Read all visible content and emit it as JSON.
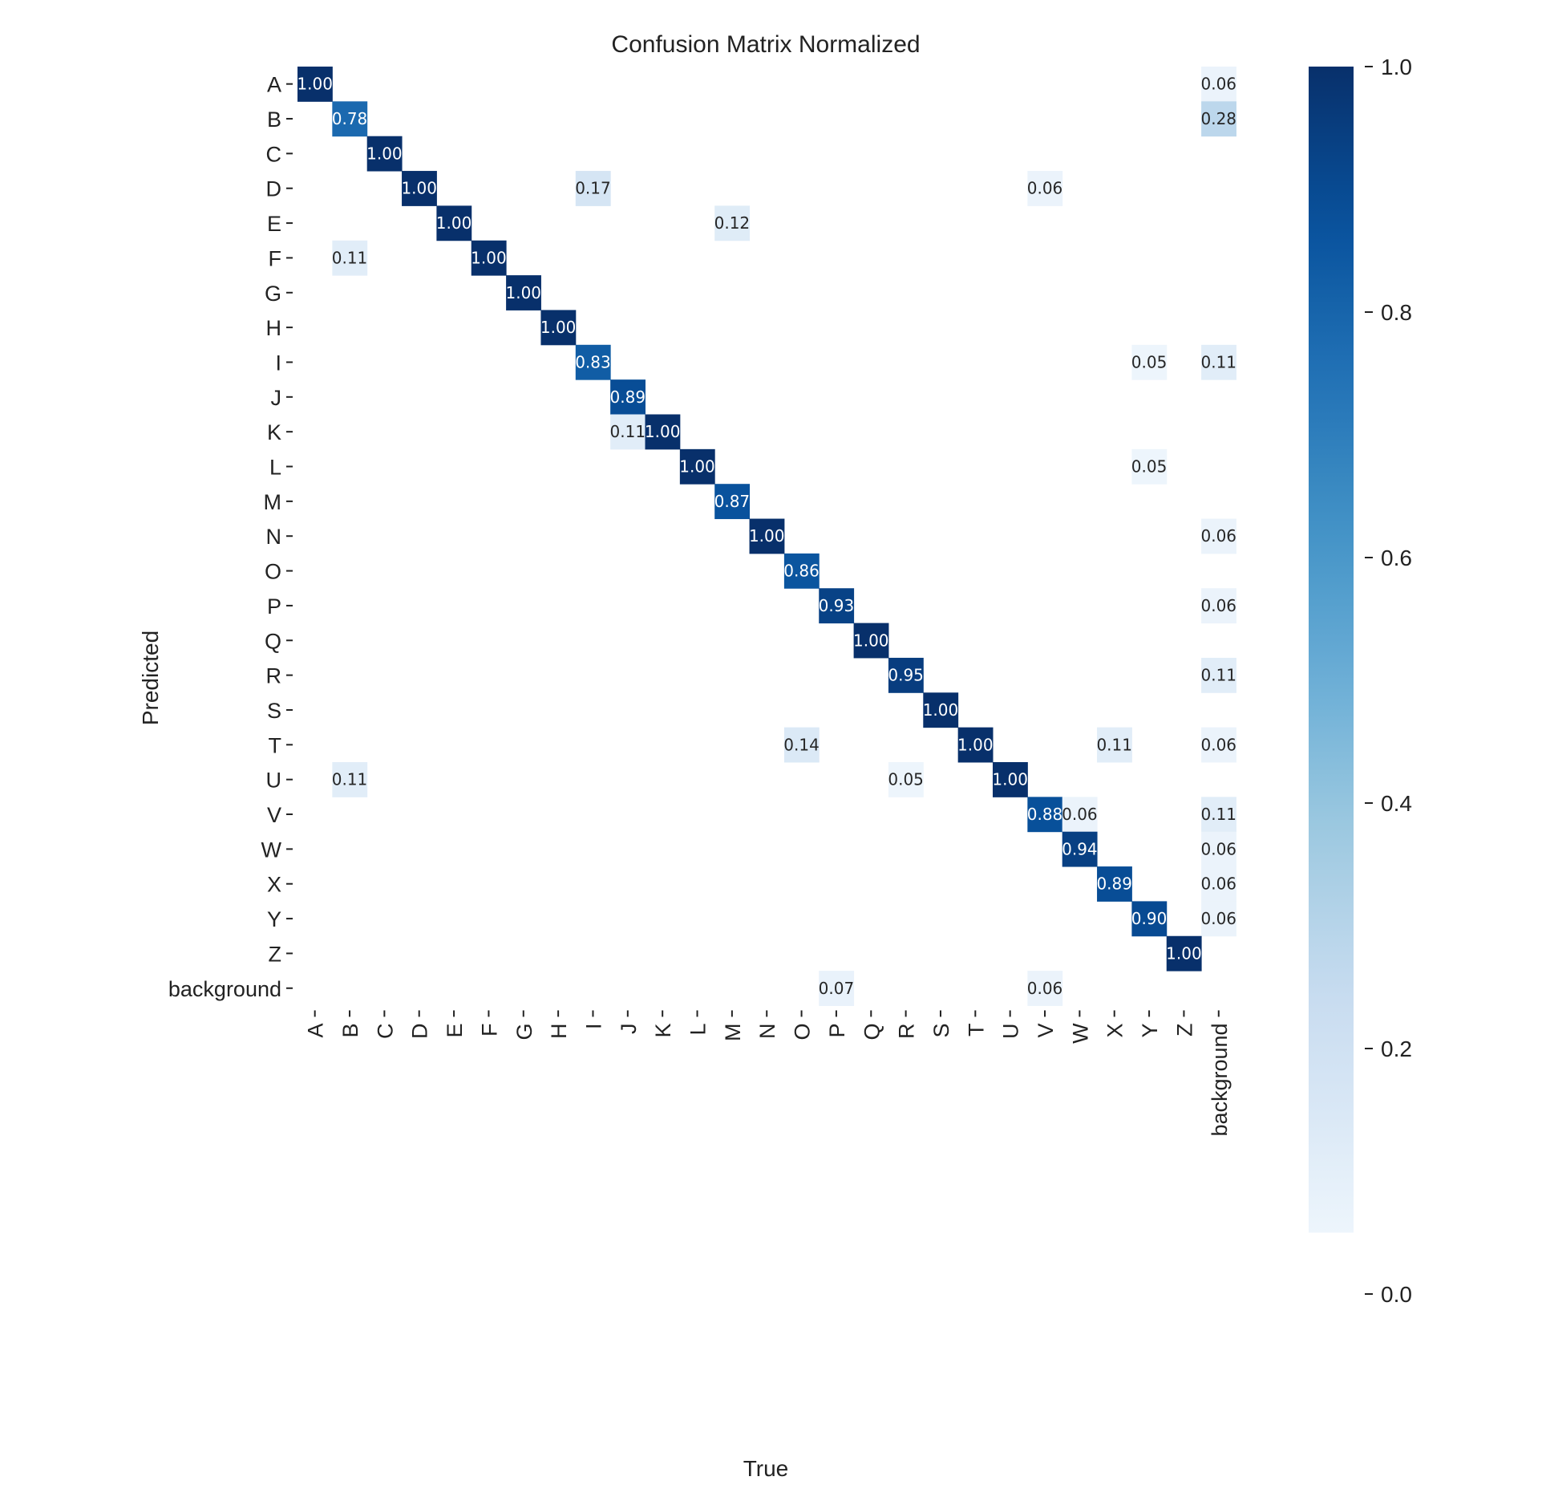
{
  "chart_data": {
    "type": "heatmap",
    "title": "Confusion Matrix Normalized",
    "xlabel": "True",
    "ylabel": "Predicted",
    "x_categories": [
      "A",
      "B",
      "C",
      "D",
      "E",
      "F",
      "G",
      "H",
      "I",
      "J",
      "K",
      "L",
      "M",
      "N",
      "O",
      "P",
      "Q",
      "R",
      "S",
      "T",
      "U",
      "V",
      "W",
      "X",
      "Y",
      "Z",
      "background"
    ],
    "y_categories": [
      "A",
      "B",
      "C",
      "D",
      "E",
      "F",
      "G",
      "H",
      "I",
      "J",
      "K",
      "L",
      "M",
      "N",
      "O",
      "P",
      "Q",
      "R",
      "S",
      "T",
      "U",
      "V",
      "W",
      "X",
      "Y",
      "Z",
      "background"
    ],
    "cells": [
      {
        "row": "A",
        "col": "A",
        "value": 1.0
      },
      {
        "row": "A",
        "col": "background",
        "value": 0.06
      },
      {
        "row": "B",
        "col": "B",
        "value": 0.78
      },
      {
        "row": "B",
        "col": "background",
        "value": 0.28
      },
      {
        "row": "C",
        "col": "C",
        "value": 1.0
      },
      {
        "row": "D",
        "col": "D",
        "value": 1.0
      },
      {
        "row": "D",
        "col": "I",
        "value": 0.17
      },
      {
        "row": "D",
        "col": "V",
        "value": 0.06
      },
      {
        "row": "E",
        "col": "E",
        "value": 1.0
      },
      {
        "row": "E",
        "col": "M",
        "value": 0.12
      },
      {
        "row": "F",
        "col": "B",
        "value": 0.11
      },
      {
        "row": "F",
        "col": "F",
        "value": 1.0
      },
      {
        "row": "G",
        "col": "G",
        "value": 1.0
      },
      {
        "row": "H",
        "col": "H",
        "value": 1.0
      },
      {
        "row": "I",
        "col": "I",
        "value": 0.83
      },
      {
        "row": "I",
        "col": "Y",
        "value": 0.05
      },
      {
        "row": "I",
        "col": "background",
        "value": 0.11
      },
      {
        "row": "J",
        "col": "J",
        "value": 0.89
      },
      {
        "row": "K",
        "col": "J",
        "value": 0.11
      },
      {
        "row": "K",
        "col": "K",
        "value": 1.0
      },
      {
        "row": "L",
        "col": "L",
        "value": 1.0
      },
      {
        "row": "L",
        "col": "Y",
        "value": 0.05
      },
      {
        "row": "M",
        "col": "M",
        "value": 0.87
      },
      {
        "row": "N",
        "col": "N",
        "value": 1.0
      },
      {
        "row": "N",
        "col": "background",
        "value": 0.06
      },
      {
        "row": "O",
        "col": "O",
        "value": 0.86
      },
      {
        "row": "P",
        "col": "P",
        "value": 0.93
      },
      {
        "row": "P",
        "col": "background",
        "value": 0.06
      },
      {
        "row": "Q",
        "col": "Q",
        "value": 1.0
      },
      {
        "row": "R",
        "col": "R",
        "value": 0.95
      },
      {
        "row": "R",
        "col": "background",
        "value": 0.11
      },
      {
        "row": "S",
        "col": "S",
        "value": 1.0
      },
      {
        "row": "T",
        "col": "O",
        "value": 0.14
      },
      {
        "row": "T",
        "col": "T",
        "value": 1.0
      },
      {
        "row": "T",
        "col": "X",
        "value": 0.11
      },
      {
        "row": "T",
        "col": "background",
        "value": 0.06
      },
      {
        "row": "U",
        "col": "B",
        "value": 0.11
      },
      {
        "row": "U",
        "col": "R",
        "value": 0.05
      },
      {
        "row": "U",
        "col": "U",
        "value": 1.0
      },
      {
        "row": "V",
        "col": "V",
        "value": 0.88
      },
      {
        "row": "V",
        "col": "W",
        "value": 0.06
      },
      {
        "row": "V",
        "col": "background",
        "value": 0.11
      },
      {
        "row": "W",
        "col": "W",
        "value": 0.94
      },
      {
        "row": "W",
        "col": "background",
        "value": 0.06
      },
      {
        "row": "X",
        "col": "X",
        "value": 0.89
      },
      {
        "row": "X",
        "col": "background",
        "value": 0.06
      },
      {
        "row": "Y",
        "col": "Y",
        "value": 0.9
      },
      {
        "row": "Y",
        "col": "background",
        "value": 0.06
      },
      {
        "row": "Z",
        "col": "Z",
        "value": 1.0
      },
      {
        "row": "background",
        "col": "P",
        "value": 0.07
      },
      {
        "row": "background",
        "col": "V",
        "value": 0.06
      }
    ],
    "value_format": "0.00",
    "colorbar": {
      "vmin": 0.0,
      "vmax": 1.0,
      "ticks": [
        0.0,
        0.2,
        0.4,
        0.6,
        0.8,
        1.0
      ],
      "tick_labels": [
        "0.0",
        "0.2",
        "0.4",
        "0.6",
        "0.8",
        "1.0"
      ],
      "colormap": "Blues"
    },
    "grid": false,
    "legend": "colorbar-right"
  }
}
